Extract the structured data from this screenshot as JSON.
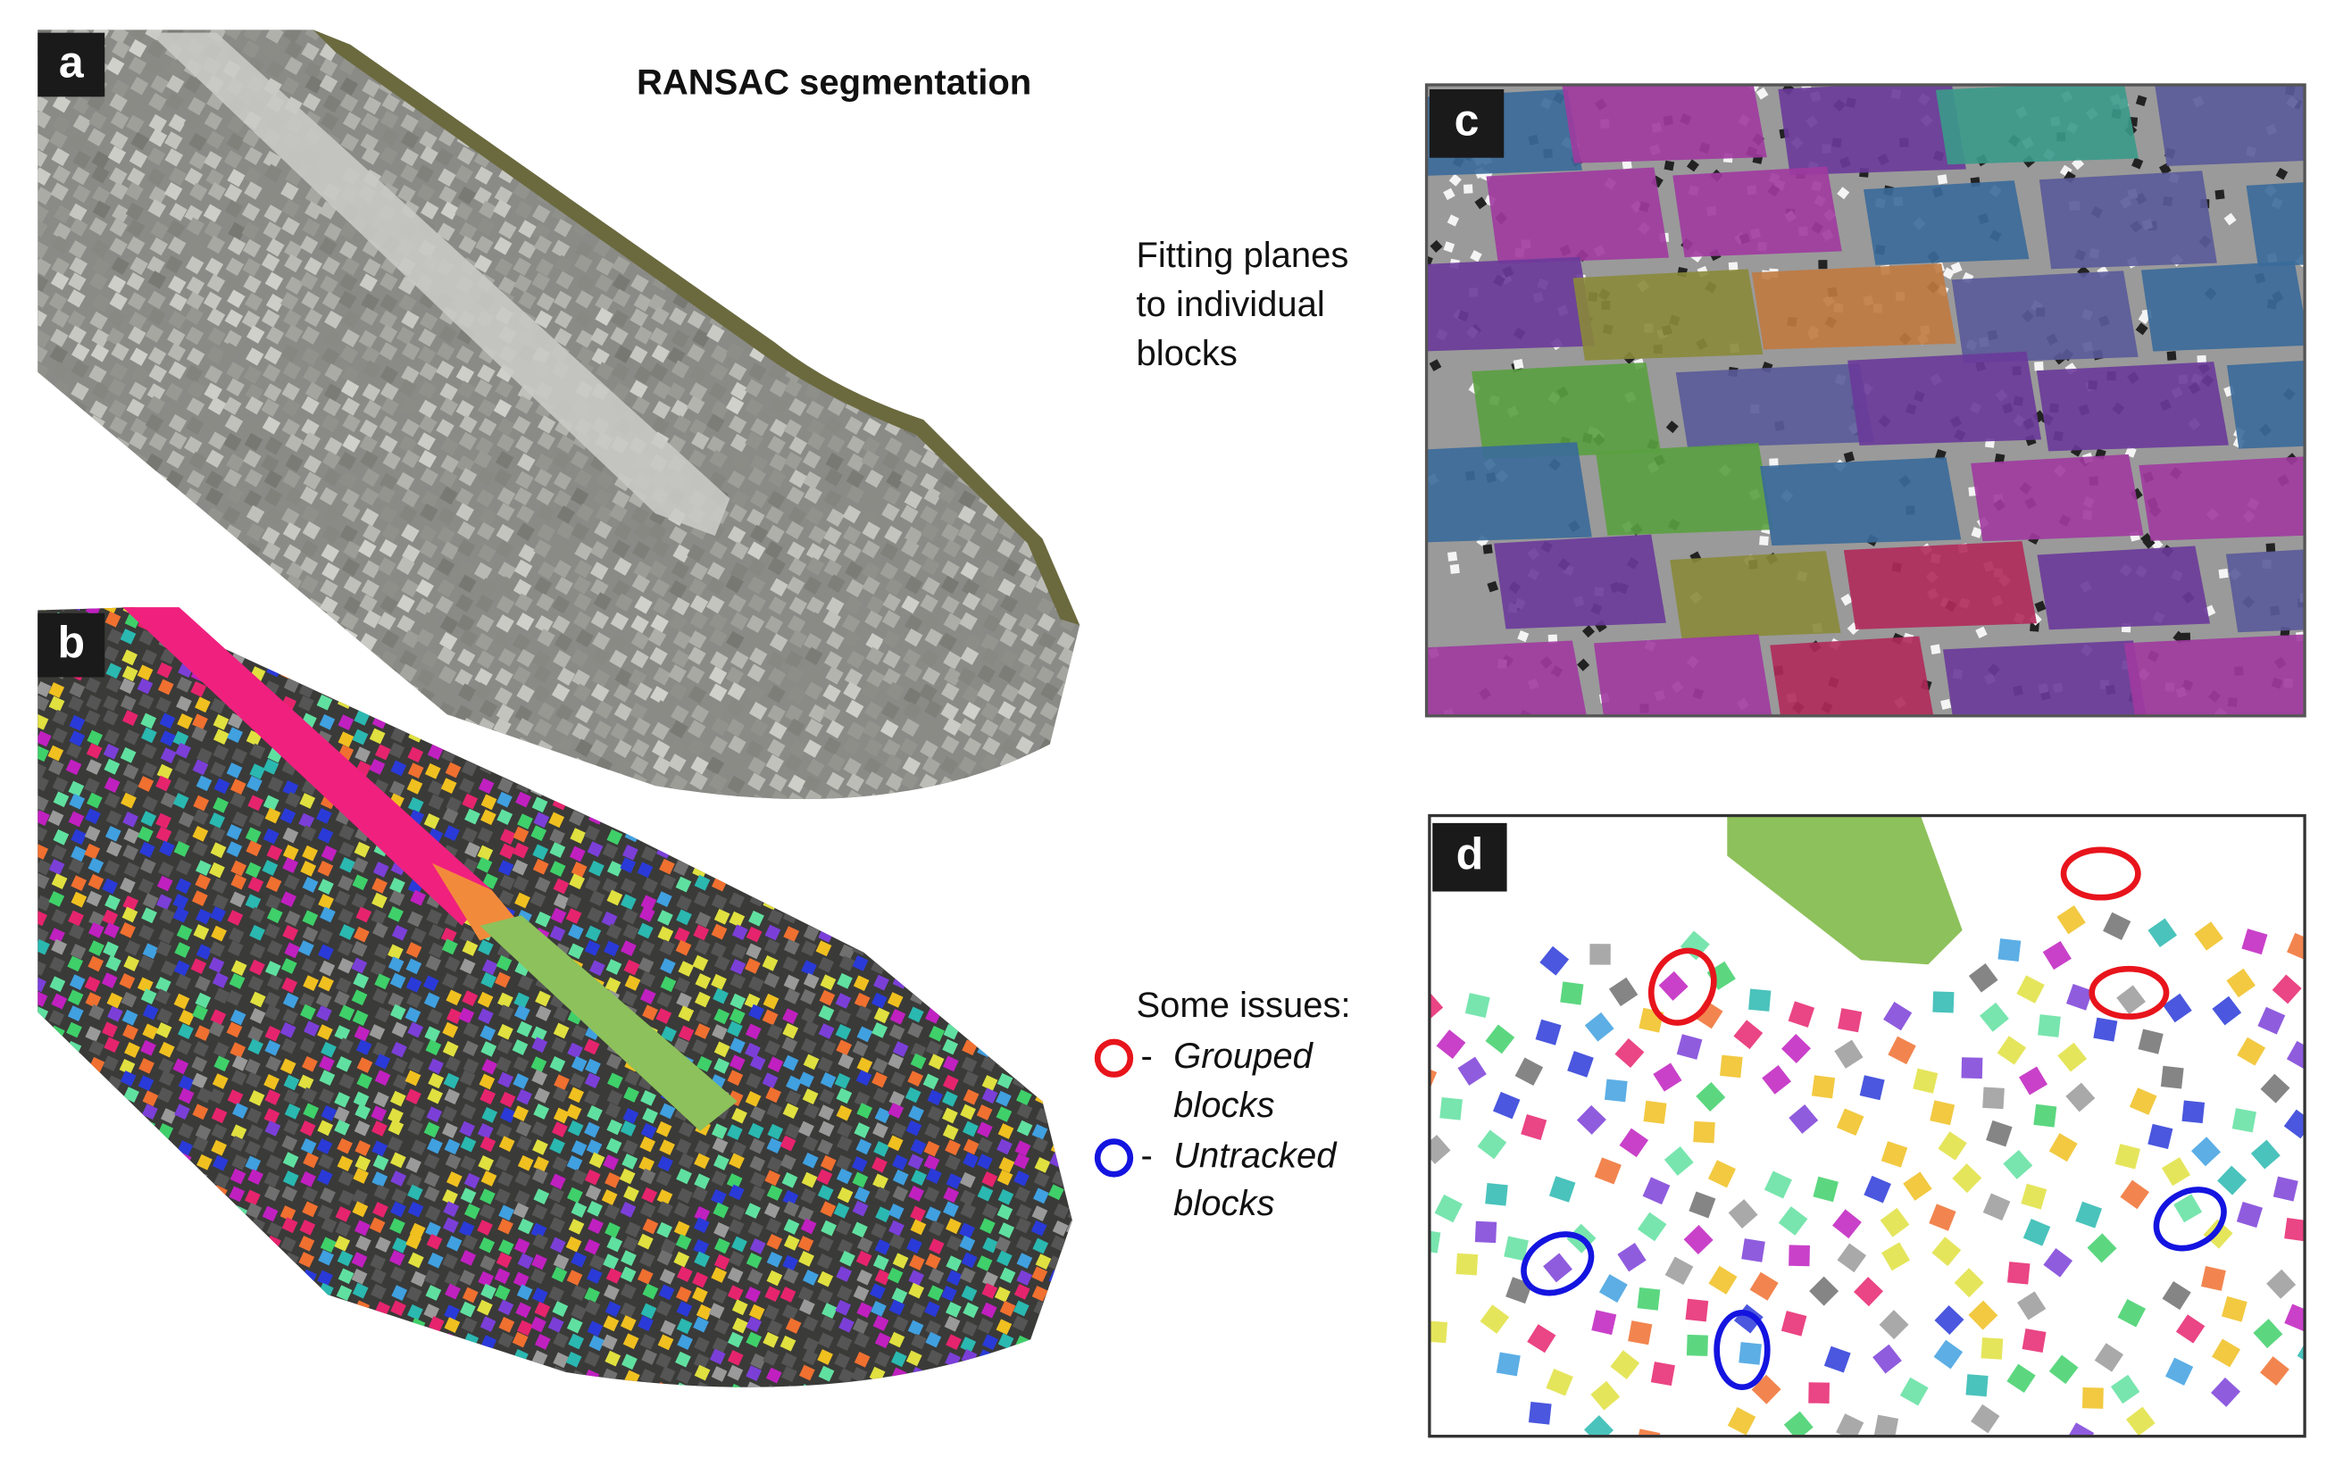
{
  "panels": {
    "a": {
      "label": "a",
      "title": "RANSAC segmentation"
    },
    "b": {
      "label": "b"
    },
    "c": {
      "label": "c",
      "caption": [
        "Fitting planes",
        "to individual",
        "blocks"
      ]
    },
    "d": {
      "label": "d",
      "issues": {
        "heading": "Some issues:",
        "items": [
          {
            "marker": "-",
            "text": [
              "Grouped",
              "blocks"
            ]
          },
          {
            "marker": "-",
            "text": [
              "Untracked",
              "blocks"
            ]
          }
        ]
      }
    }
  }
}
